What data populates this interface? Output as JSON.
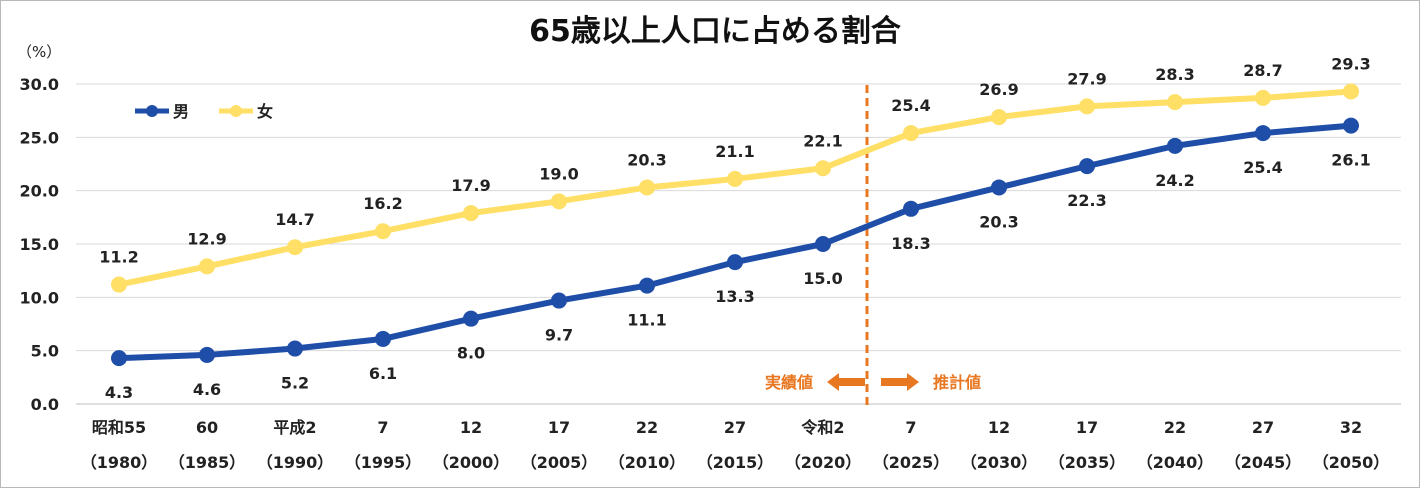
{
  "chart_data": {
    "type": "line",
    "title": "65歳以上人口に占める割合",
    "ylabel": "（%）",
    "ylim": [
      0,
      30
    ],
    "yticks": [
      "0.0",
      "5.0",
      "10.0",
      "15.0",
      "20.0",
      "25.0",
      "30.0"
    ],
    "grid": true,
    "legend": "top-left",
    "categories": [
      [
        "昭和55",
        "（1980）"
      ],
      [
        "60",
        "（1985）"
      ],
      [
        "平成2",
        "（1990）"
      ],
      [
        "7",
        "（1995）"
      ],
      [
        "12",
        "（2000）"
      ],
      [
        "17",
        "（2005）"
      ],
      [
        "22",
        "（2010）"
      ],
      [
        "27",
        "（2015）"
      ],
      [
        "令和2",
        "（2020）"
      ],
      [
        "7",
        "（2025）"
      ],
      [
        "12",
        "（2030）"
      ],
      [
        "17",
        "（2035）"
      ],
      [
        "22",
        "（2040）"
      ],
      [
        "27",
        "（2045）"
      ],
      [
        "32",
        "（2050）"
      ]
    ],
    "series": [
      {
        "name": "男",
        "color": "#1F4EA8",
        "values": [
          4.3,
          4.6,
          5.2,
          6.1,
          8.0,
          9.7,
          11.1,
          13.3,
          15.0,
          18.3,
          20.3,
          22.3,
          24.2,
          25.4,
          26.1
        ],
        "labels": [
          "4.3",
          "4.6",
          "5.2",
          "6.1",
          "8.0",
          "9.7",
          "11.1",
          "13.3",
          "15.0",
          "18.3",
          "20.3",
          "22.3",
          "24.2",
          "25.4",
          "26.1"
        ]
      },
      {
        "name": "女",
        "color": "#FFDF66",
        "values": [
          11.2,
          12.9,
          14.7,
          16.2,
          17.9,
          19.0,
          20.3,
          21.1,
          22.1,
          25.4,
          26.9,
          27.9,
          28.3,
          28.7,
          29.3
        ],
        "labels": [
          "11.2",
          "12.9",
          "14.7",
          "16.2",
          "17.9",
          "19.0",
          "20.3",
          "21.1",
          "22.1",
          "25.4",
          "26.9",
          "27.9",
          "28.3",
          "28.7",
          "29.3"
        ]
      }
    ],
    "annotations": {
      "actual_label": "実績値",
      "projected_label": "推計値",
      "divider_color": "#E87722"
    }
  }
}
